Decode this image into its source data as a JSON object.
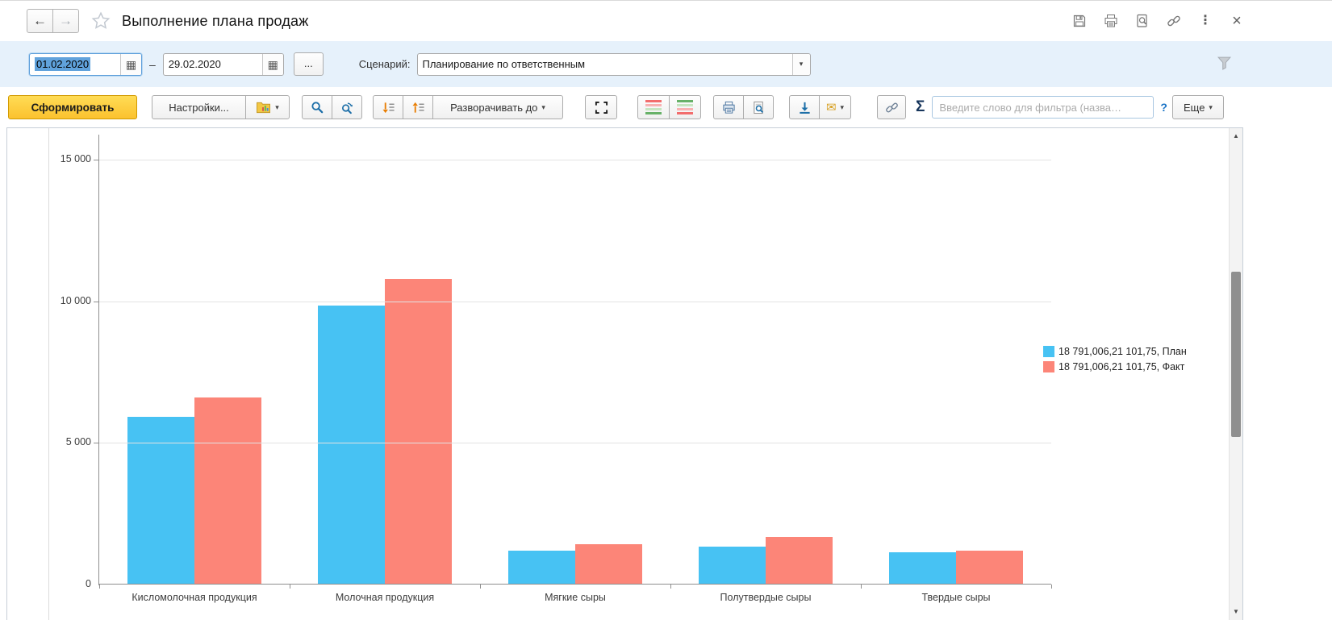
{
  "header": {
    "back_label": "←",
    "forward_label": "→",
    "title": "Выполнение плана продаж"
  },
  "filters": {
    "date_from": "01.02.2020",
    "range_dash": "–",
    "date_to": "29.02.2020",
    "ellipsis_button": "...",
    "scenario_label": "Сценарий:",
    "scenario_value": "Планирование по ответственным"
  },
  "toolbar": {
    "generate_label": "Сформировать",
    "settings_label": "Настройки...",
    "expand_to_label": "Разворачивать до",
    "sigma_label": "Σ",
    "filter_placeholder": "Введите слово для фильтра (назва…",
    "help_label": "?",
    "more_label": "Еще"
  },
  "icons": {
    "calendar_glyph": "▦",
    "dropdown_glyph": "▾",
    "star_glyph": "☆",
    "more_dots_glyph": "⋮",
    "close_glyph": "×",
    "envelope_glyph": "✉",
    "scroll_up_glyph": "▲",
    "scroll_down_glyph": "▼"
  },
  "chart_data": {
    "type": "bar",
    "title": "",
    "categories": [
      "Кисломолочная продукция",
      "Молочная продукция",
      "Мягкие сыры",
      "Полутвердые сыры",
      "Твердые сыры"
    ],
    "series": [
      {
        "name": "План",
        "color": "#47C2F3",
        "values": [
          5900,
          9830,
          1170,
          1310,
          1110
        ]
      },
      {
        "name": "Факт",
        "color": "#FC8578",
        "values": [
          6570,
          10750,
          1400,
          1660,
          1170
        ]
      }
    ],
    "legend_entries": [
      {
        "color": "#47C2F3",
        "label": "18 791,006,21 101,75, План"
      },
      {
        "color": "#FC8578",
        "label": "18 791,006,21 101,75, Факт"
      }
    ],
    "ylim": [
      0,
      15000
    ],
    "yticks": [
      {
        "value": 15000,
        "label": "15 000"
      },
      {
        "value": 10000,
        "label": "10 000"
      },
      {
        "value": 5000,
        "label": "5 000"
      },
      {
        "value": 0,
        "label": "0"
      }
    ],
    "grid": true,
    "legend_position": "right"
  }
}
